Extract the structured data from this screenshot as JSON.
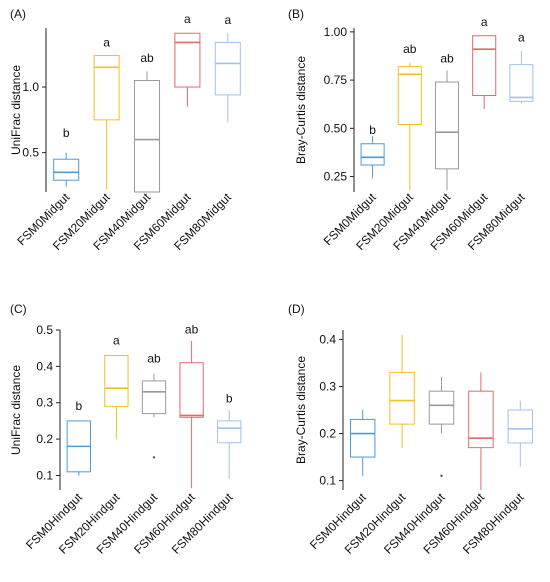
{
  "chart_data": [
    {
      "type": "boxplot",
      "panel_label": "(A)",
      "ylabel": "UniFrac distance",
      "ylim": [
        0.2,
        1.45
      ],
      "yticks": [
        0.5,
        1.0
      ],
      "ytick_labels": [
        "0.5",
        "1.0"
      ],
      "categories": [
        "FSM0Midgut",
        "FSM20Midgut",
        "FSM40Midgut",
        "FSM60Midgut",
        "FSM80Midgut"
      ],
      "colors": [
        "#4a9bd6",
        "#f0c020",
        "#9a9a9a",
        "#e06a6a",
        "#9ec3ee"
      ],
      "boxes": [
        {
          "min": 0.24,
          "q1": 0.29,
          "median": 0.35,
          "q3": 0.45,
          "max": 0.5
        },
        {
          "min": 0.22,
          "q1": 0.75,
          "median": 1.15,
          "q3": 1.24,
          "max": 1.24
        },
        {
          "min": 0.2,
          "q1": 0.2,
          "median": 0.6,
          "q3": 1.05,
          "max": 1.12
        },
        {
          "min": 0.85,
          "q1": 1.0,
          "median": 1.34,
          "q3": 1.41,
          "max": 1.41
        },
        {
          "min": 0.73,
          "q1": 0.94,
          "median": 1.18,
          "q3": 1.34,
          "max": 1.41
        }
      ],
      "letters": [
        "b",
        "a",
        "ab",
        "a",
        "a"
      ],
      "letter_values": [
        0.62,
        1.31,
        1.19,
        1.49,
        1.48
      ]
    },
    {
      "type": "boxplot",
      "panel_label": "(B)",
      "ylabel": "Bray-Curtis distance",
      "ylim": [
        0.17,
        1.02
      ],
      "yticks": [
        0.25,
        0.5,
        0.75,
        1.0
      ],
      "ytick_labels": [
        "0.25",
        "0.50",
        "0.75",
        "1.00"
      ],
      "categories": [
        "FSM0Midgut",
        "FSM20Midgut",
        "FSM40Midgut",
        "FSM60Midgut",
        "FSM80Midgut"
      ],
      "colors": [
        "#4a9bd6",
        "#f0c020",
        "#9a9a9a",
        "#e06a6a",
        "#9ec3ee"
      ],
      "boxes": [
        {
          "min": 0.24,
          "q1": 0.31,
          "median": 0.35,
          "q3": 0.42,
          "max": 0.46
        },
        {
          "min": 0.18,
          "q1": 0.52,
          "median": 0.78,
          "q3": 0.82,
          "max": 0.84
        },
        {
          "min": 0.18,
          "q1": 0.29,
          "median": 0.48,
          "q3": 0.74,
          "max": 0.8
        },
        {
          "min": 0.6,
          "q1": 0.67,
          "median": 0.91,
          "q3": 0.98,
          "max": 0.98
        },
        {
          "min": 0.63,
          "q1": 0.64,
          "median": 0.66,
          "q3": 0.83,
          "max": 0.9
        }
      ],
      "letters": [
        "b",
        "ab",
        "ab",
        "a",
        "a"
      ],
      "letter_values": [
        0.47,
        0.89,
        0.84,
        1.03,
        0.95
      ]
    },
    {
      "type": "boxplot",
      "panel_label": "(C)",
      "ylabel": "UniFrac distance",
      "ylim": [
        0.06,
        0.5
      ],
      "yticks": [
        0.1,
        0.2,
        0.3,
        0.4,
        0.5
      ],
      "ytick_labels": [
        "0.1",
        "0.2",
        "0.3",
        "0.4",
        "0.5"
      ],
      "categories": [
        "FSM0Hindgut",
        "FSM20Hindgut",
        "FSM40Hindgut",
        "FSM60Hindgut",
        "FSM80Hindgut"
      ],
      "colors": [
        "#4a9bd6",
        "#f0c020",
        "#9a9a9a",
        "#e06a6a",
        "#9ec3ee"
      ],
      "boxes": [
        {
          "min": 0.1,
          "q1": 0.11,
          "median": 0.18,
          "q3": 0.25,
          "max": 0.25
        },
        {
          "min": 0.2,
          "q1": 0.29,
          "median": 0.34,
          "q3": 0.43,
          "max": 0.43
        },
        {
          "min": 0.26,
          "q1": 0.27,
          "median": 0.33,
          "q3": 0.36,
          "max": 0.38,
          "outliers": [
            0.15
          ]
        },
        {
          "min": 0.065,
          "q1": 0.26,
          "median": 0.265,
          "q3": 0.41,
          "max": 0.47
        },
        {
          "min": 0.09,
          "q1": 0.19,
          "median": 0.23,
          "q3": 0.25,
          "max": 0.28
        }
      ],
      "letters": [
        "b",
        "a",
        "ab",
        "ab",
        "b"
      ],
      "letter_values": [
        0.28,
        0.46,
        0.41,
        0.49,
        0.3
      ]
    },
    {
      "type": "boxplot",
      "panel_label": "(D)",
      "ylabel": "Bray-Curtis distance",
      "ylim": [
        0.08,
        0.42
      ],
      "yticks": [
        0.1,
        0.2,
        0.3,
        0.4
      ],
      "ytick_labels": [
        "0.1",
        "0.2",
        "0.3",
        "0.4"
      ],
      "categories": [
        "FSM0Hindgut",
        "FSM20Hindgut",
        "FSM40Hindgut",
        "FSM60Hindgut",
        "FSM80Hindgut"
      ],
      "colors": [
        "#4a9bd6",
        "#f0c020",
        "#9a9a9a",
        "#e06a6a",
        "#9ec3ee"
      ],
      "boxes": [
        {
          "min": 0.11,
          "q1": 0.15,
          "median": 0.2,
          "q3": 0.23,
          "max": 0.25
        },
        {
          "min": 0.17,
          "q1": 0.22,
          "median": 0.27,
          "q3": 0.33,
          "max": 0.41
        },
        {
          "min": 0.2,
          "q1": 0.22,
          "median": 0.26,
          "q3": 0.29,
          "max": 0.32,
          "outliers": [
            0.11
          ]
        },
        {
          "min": 0.08,
          "q1": 0.17,
          "median": 0.19,
          "q3": 0.29,
          "max": 0.33
        },
        {
          "min": 0.13,
          "q1": 0.18,
          "median": 0.21,
          "q3": 0.25,
          "max": 0.27
        }
      ],
      "letters": [],
      "letter_values": []
    }
  ]
}
